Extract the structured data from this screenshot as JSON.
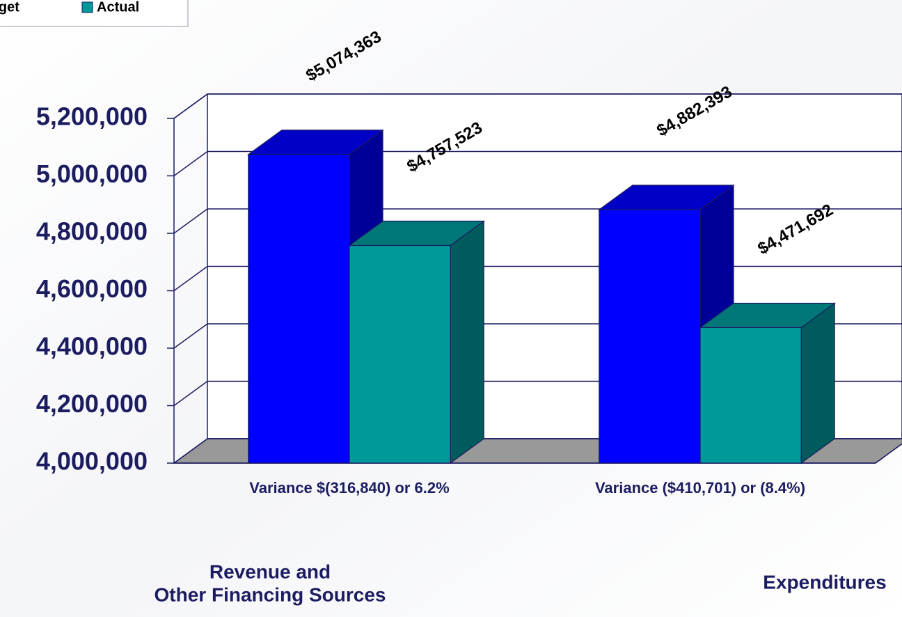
{
  "chart_data": {
    "type": "bar3d",
    "categories": [
      "Variance $(316,840) or 6.2%",
      "Variance ($410,701) or (8.4%)"
    ],
    "series": [
      {
        "name": "Budget",
        "color": "#0000ff",
        "values": [
          5074363,
          4882393
        ],
        "value_labels": [
          "$5,074,363",
          "$4,882,393"
        ]
      },
      {
        "name": "Actual",
        "color": "#009999",
        "values": [
          4757523,
          4471692
        ],
        "value_labels": [
          "$4,757,523",
          "$4,471,692"
        ]
      }
    ],
    "annotations": [
      "Revenue and",
      "Other Financing Sources",
      "Expenditures"
    ],
    "ylim": [
      4000000,
      5200000
    ],
    "yticks": [
      {
        "value": 4000000,
        "label": "4,000,000"
      },
      {
        "value": 4200000,
        "label": "4,200,000"
      },
      {
        "value": 4400000,
        "label": "4,400,000"
      },
      {
        "value": 4600000,
        "label": "4,600,000"
      },
      {
        "value": 4800000,
        "label": "4,800,000"
      },
      {
        "value": 5000000,
        "label": "5,000,000"
      },
      {
        "value": 5200000,
        "label": "5,200,000"
      }
    ],
    "grid": true,
    "legend": "top-left"
  }
}
